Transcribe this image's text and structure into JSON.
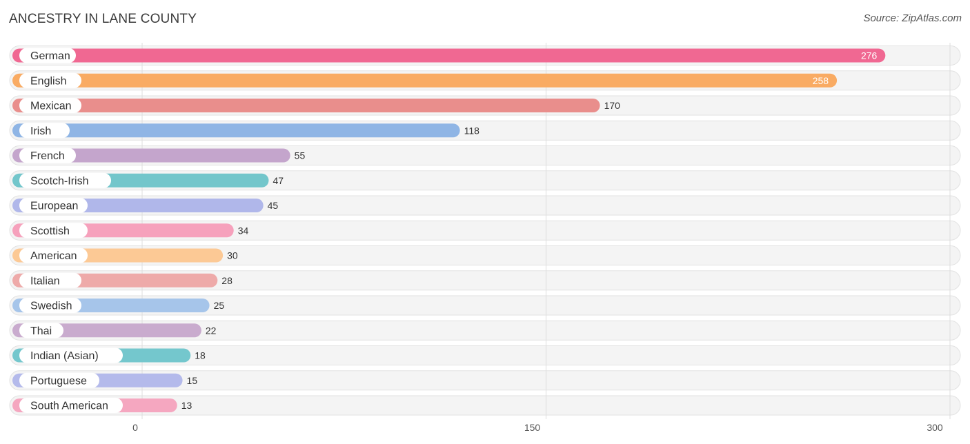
{
  "chart_data": {
    "type": "bar",
    "orientation": "horizontal",
    "title": "ANCESTRY IN LANE COUNTY",
    "source": "Source: ZipAtlas.com",
    "xlim": [
      0,
      300
    ],
    "ticks": [
      0,
      150,
      300
    ],
    "tick_labels": [
      "0",
      "150",
      "300"
    ],
    "grid": true,
    "categories": [
      "German",
      "English",
      "Mexican",
      "Irish",
      "French",
      "Scotch-Irish",
      "European",
      "Scottish",
      "American",
      "Italian",
      "Swedish",
      "Thai",
      "Indian (Asian)",
      "Portuguese",
      "South American"
    ],
    "values": [
      276,
      258,
      170,
      118,
      55,
      47,
      45,
      34,
      30,
      28,
      25,
      22,
      18,
      15,
      13
    ],
    "value_labels": [
      "276",
      "258",
      "170",
      "118",
      "55",
      "47",
      "45",
      "34",
      "30",
      "28",
      "25",
      "22",
      "18",
      "15",
      "13"
    ],
    "colors": [
      "#f06892",
      "#f9ab63",
      "#e98e8c",
      "#8fb5e5",
      "#c4a5cc",
      "#73c6cb",
      "#b0b7ea",
      "#f6a1bc",
      "#fcc995",
      "#eeaaa9",
      "#a6c5ea",
      "#c9abce",
      "#74c7cd",
      "#b4baeb",
      "#f5a7c0"
    ]
  }
}
